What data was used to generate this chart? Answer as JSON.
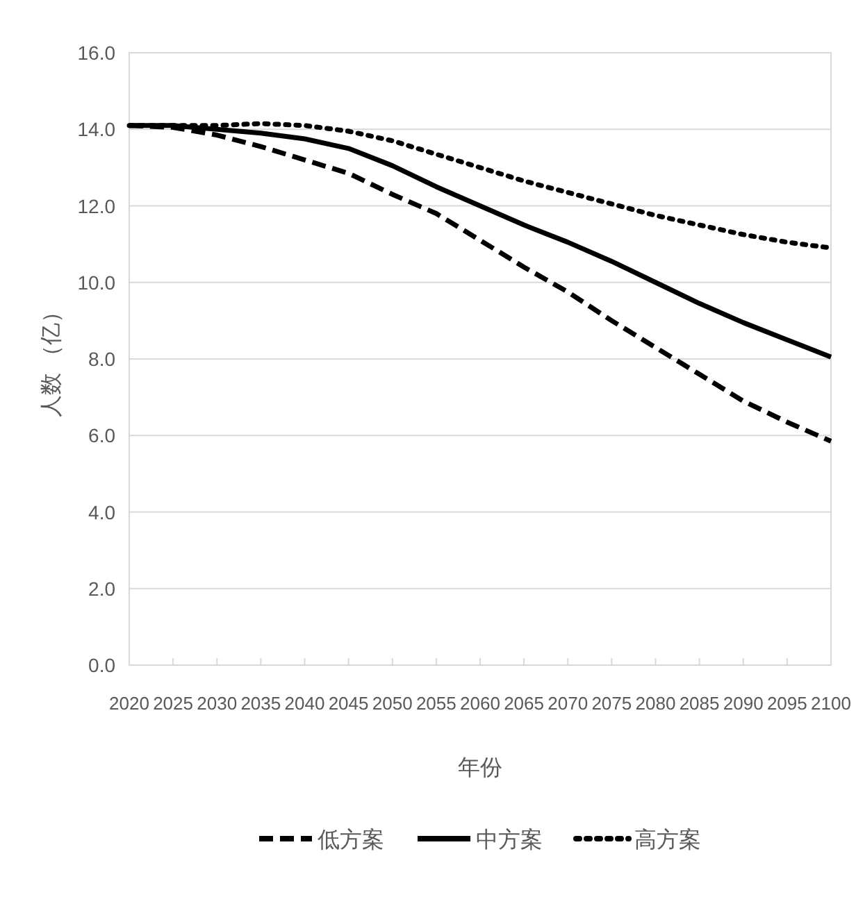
{
  "chart_data": {
    "type": "line",
    "xlabel": "年份",
    "ylabel": "人数 （亿）",
    "x": [
      2020,
      2025,
      2030,
      2035,
      2040,
      2045,
      2050,
      2055,
      2060,
      2065,
      2070,
      2075,
      2080,
      2085,
      2090,
      2095,
      2100
    ],
    "series": [
      {
        "name": "低方案",
        "color": "#000000",
        "line_style": "dashed",
        "values": [
          14.1,
          14.05,
          13.85,
          13.55,
          13.2,
          12.85,
          12.3,
          11.8,
          11.1,
          10.4,
          9.75,
          9.0,
          8.3,
          7.6,
          6.9,
          6.35,
          5.85
        ]
      },
      {
        "name": "中方案",
        "color": "#000000",
        "line_style": "solid",
        "values": [
          14.1,
          14.1,
          14.0,
          13.9,
          13.75,
          13.5,
          13.05,
          12.5,
          12.0,
          11.5,
          11.05,
          10.55,
          10.0,
          9.45,
          8.95,
          8.5,
          8.05
        ]
      },
      {
        "name": "高方案",
        "color": "#000000",
        "line_style": "dotted",
        "values": [
          14.1,
          14.1,
          14.1,
          14.15,
          14.1,
          13.95,
          13.7,
          13.35,
          13.0,
          12.65,
          12.35,
          12.05,
          11.75,
          11.5,
          11.25,
          11.05,
          10.9
        ]
      }
    ],
    "xlim": [
      2020,
      2100
    ],
    "xticks": [
      2020,
      2025,
      2030,
      2035,
      2040,
      2045,
      2050,
      2055,
      2060,
      2065,
      2070,
      2075,
      2080,
      2085,
      2090,
      2095,
      2100
    ],
    "ylim": [
      0,
      16
    ],
    "yticks": [
      {
        "value": 0,
        "label": "0.0"
      },
      {
        "value": 2,
        "label": "2.0"
      },
      {
        "value": 4,
        "label": "4.0"
      },
      {
        "value": 6,
        "label": "6.0"
      },
      {
        "value": 8,
        "label": "8.0"
      },
      {
        "value": 10,
        "label": "10.0"
      },
      {
        "value": 12,
        "label": "12.0"
      },
      {
        "value": 14,
        "label": "14.0"
      },
      {
        "value": 16,
        "label": "16.0"
      }
    ],
    "grid": "y",
    "legend": "bottom",
    "marker": "none"
  }
}
